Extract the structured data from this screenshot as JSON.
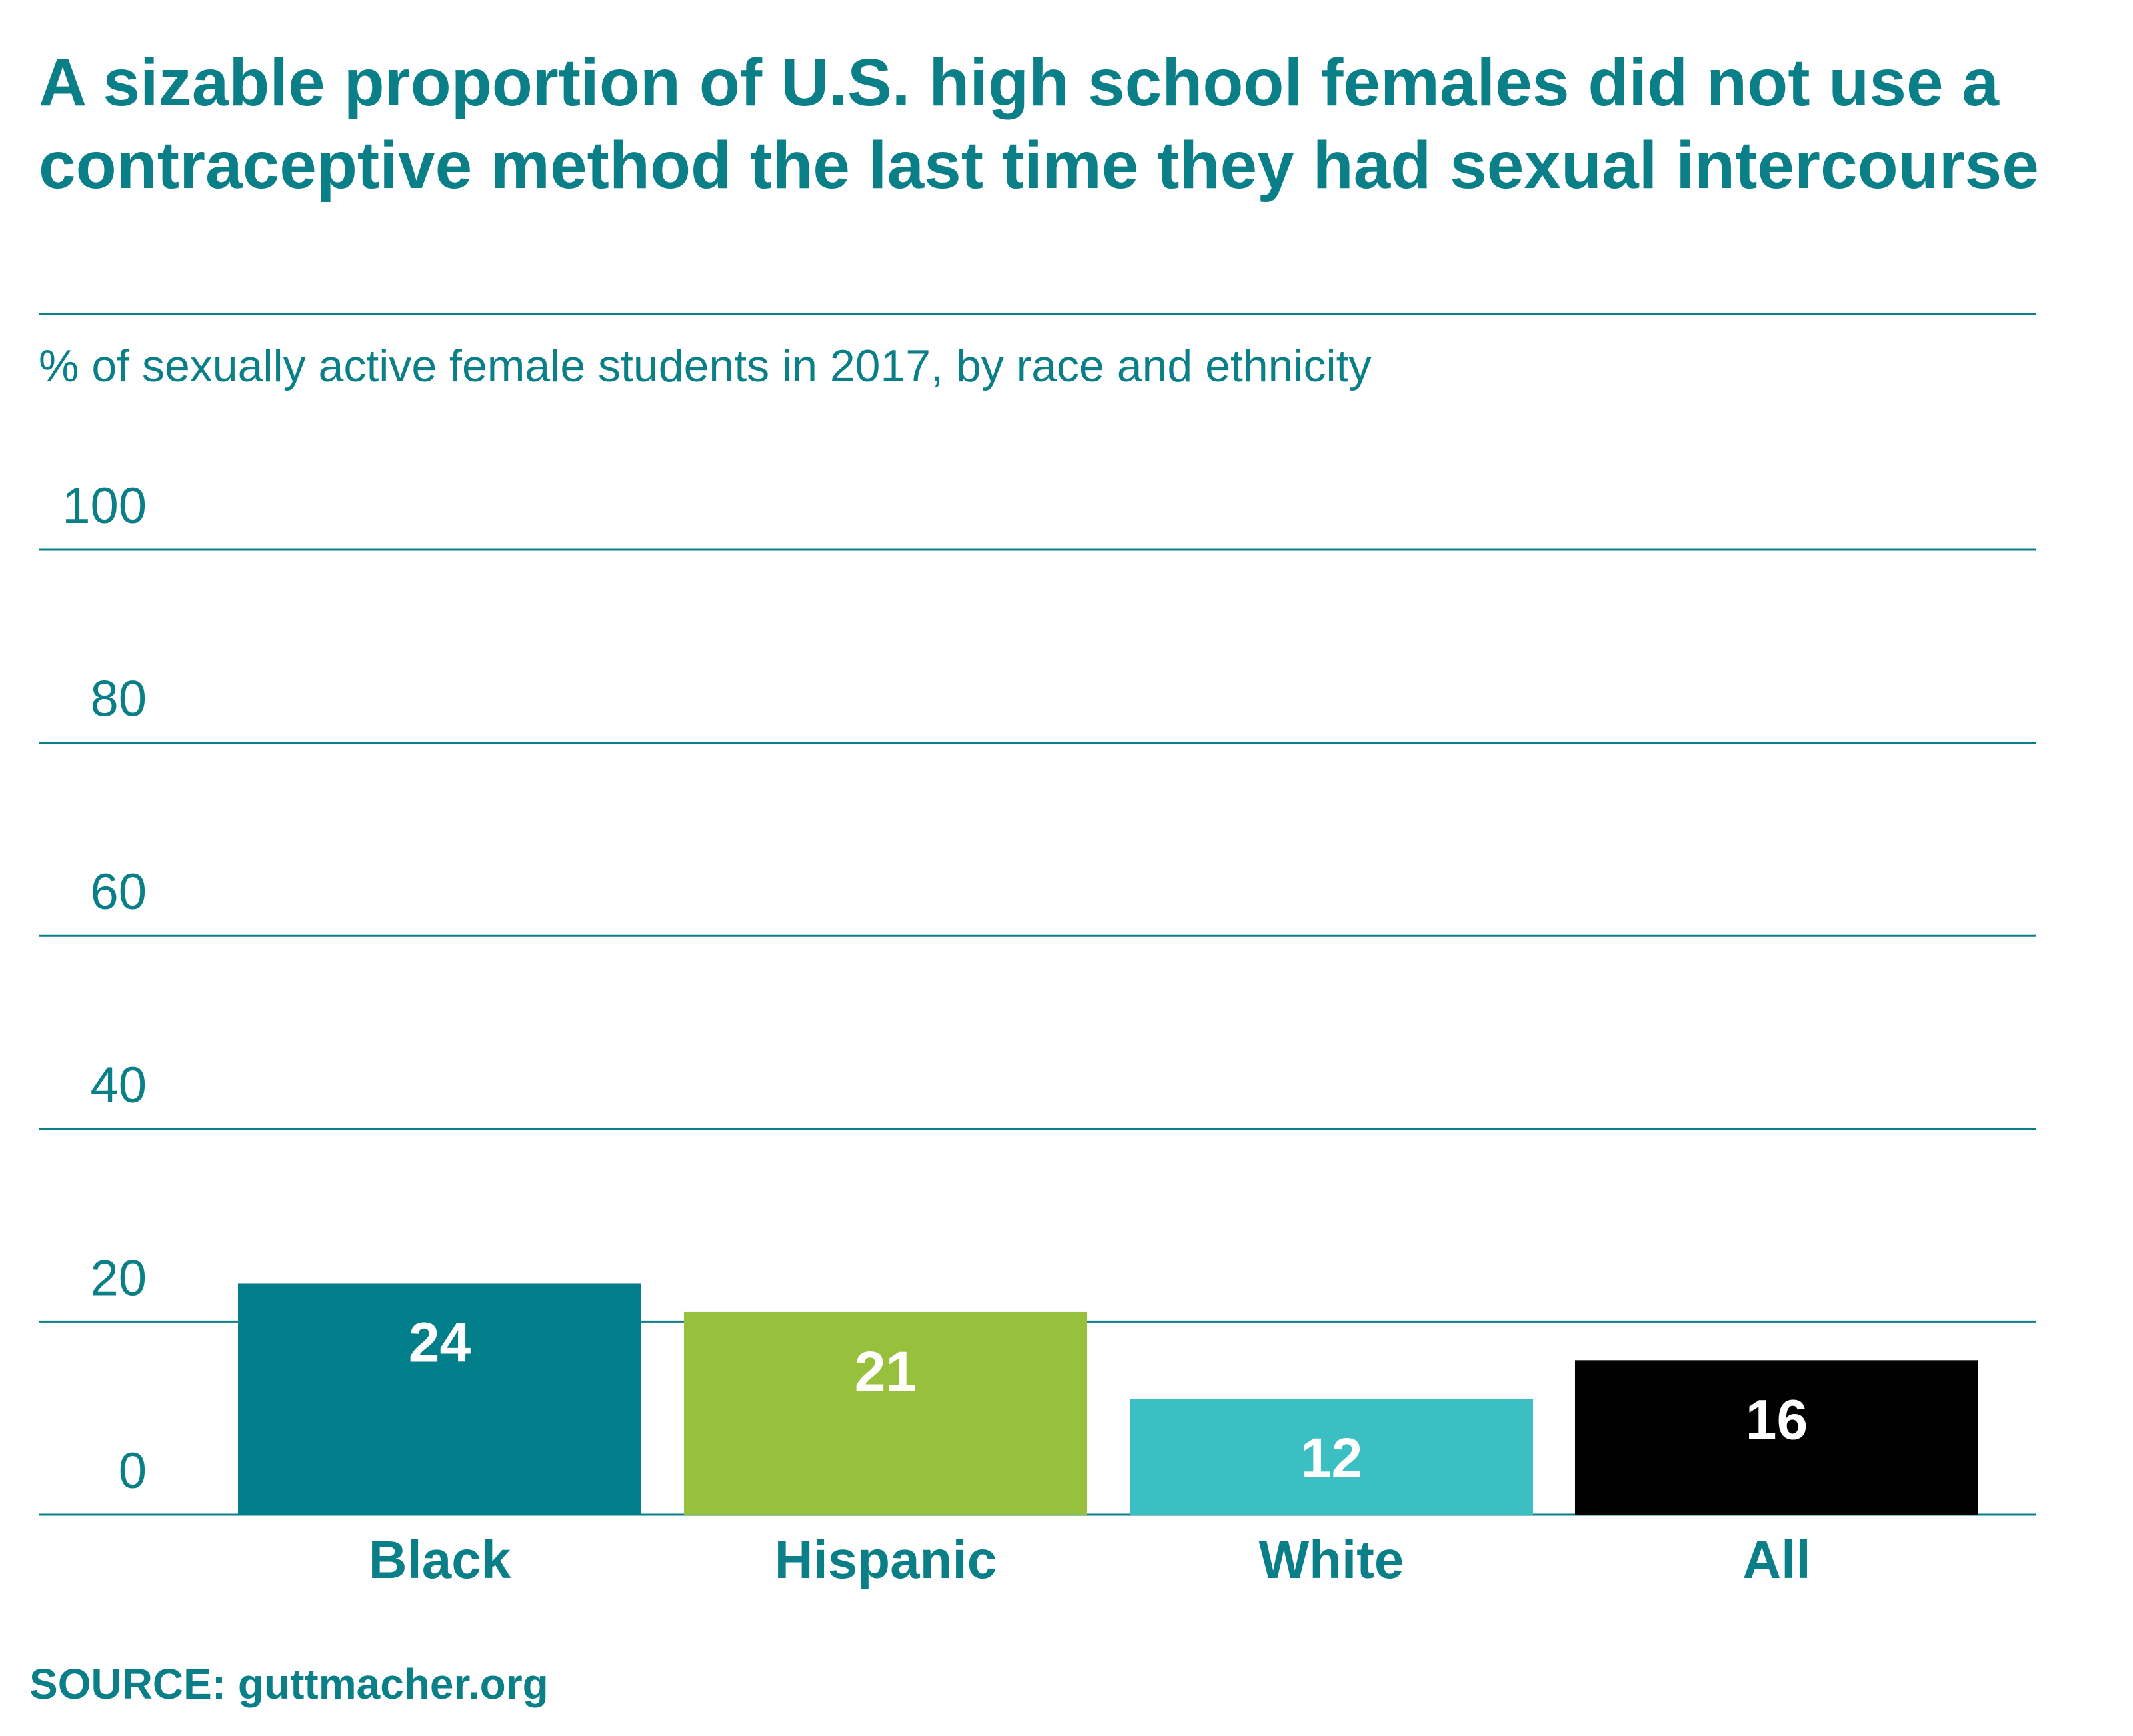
{
  "title": "A sizable proportion of U.S. high school females did not use a contraceptive method the last time they had sexual intercourse",
  "subtitle": "% of sexually active female students in 2017, by race and ethnicity",
  "source": "SOURCE: guttmacher.org",
  "colors": {
    "text": "#0b7f87",
    "grid": "#0b7f87",
    "label_on_bar": "#ffffff"
  },
  "chart_data": {
    "type": "bar",
    "title": "A sizable proportion of U.S. high school females did not use a contraceptive method the last time they had sexual intercourse",
    "subtitle": "% of sexually active female students in 2017, by race and ethnicity",
    "categories": [
      "Black",
      "Hispanic",
      "White",
      "All"
    ],
    "values": [
      24,
      21,
      12,
      16
    ],
    "data_labels": [
      "24",
      "21",
      "12",
      "16"
    ],
    "bar_colors": [
      "#007f8a",
      "#97c03d",
      "#3bbfc2",
      "#000000"
    ],
    "ylim": [
      0,
      100
    ],
    "yticks": [
      0,
      20,
      40,
      60,
      80,
      100
    ],
    "xlabel": "",
    "ylabel": "",
    "grid": true,
    "legend": "none"
  }
}
